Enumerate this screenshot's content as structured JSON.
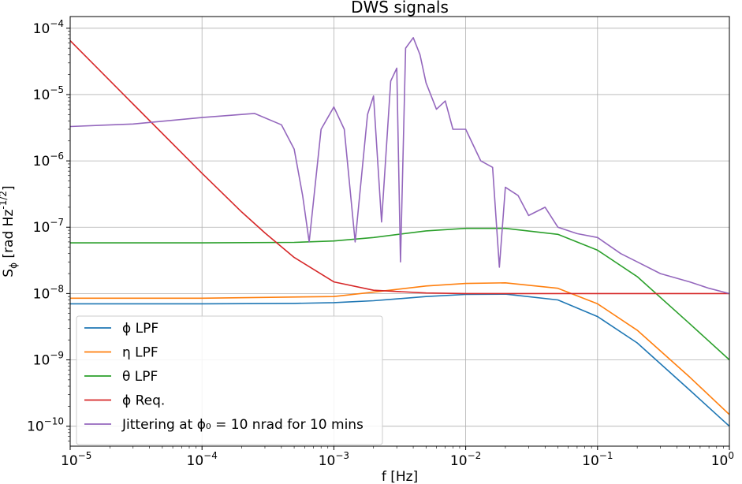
{
  "chart_data": {
    "type": "line",
    "title": "DWS signals",
    "xlabel": "f [Hz]",
    "ylabel": "S_ϕ [rad Hz^{-1/2}]",
    "x_scale": "log",
    "y_scale": "log",
    "xlim": [
      1e-05,
      1
    ],
    "ylim": [
      5e-11,
      0.00015
    ],
    "grid": true,
    "legend_position": "lower-left",
    "x_ticks": [
      {
        "base": "10",
        "exp": "−5",
        "value": 1e-05
      },
      {
        "base": "10",
        "exp": "−4",
        "value": 0.0001
      },
      {
        "base": "10",
        "exp": "−3",
        "value": 0.001
      },
      {
        "base": "10",
        "exp": "−2",
        "value": 0.01
      },
      {
        "base": "10",
        "exp": "−1",
        "value": 0.1
      },
      {
        "base": "10",
        "exp": "0",
        "value": 1
      }
    ],
    "y_ticks": [
      {
        "base": "10",
        "exp": "−10",
        "value": 1e-10
      },
      {
        "base": "10",
        "exp": "−9",
        "value": 1e-09
      },
      {
        "base": "10",
        "exp": "−8",
        "value": 1e-08
      },
      {
        "base": "10",
        "exp": "−7",
        "value": 1e-07
      },
      {
        "base": "10",
        "exp": "−6",
        "value": 1e-06
      },
      {
        "base": "10",
        "exp": "−5",
        "value": 1e-05
      },
      {
        "base": "10",
        "exp": "−4",
        "value": 0.0001
      }
    ],
    "series": [
      {
        "name": "ϕ LPF",
        "color": "#1f77b4",
        "x": [
          1e-05,
          0.0001,
          0.0005,
          0.001,
          0.002,
          0.005,
          0.01,
          0.02,
          0.05,
          0.1,
          0.2,
          0.5,
          1
        ],
        "y": [
          7e-09,
          7e-09,
          7.1e-09,
          7.3e-09,
          7.8e-09,
          9e-09,
          9.7e-09,
          9.8e-09,
          8e-09,
          4.5e-09,
          1.8e-09,
          3.5e-10,
          1e-10
        ]
      },
      {
        "name": "η LPF",
        "color": "#ff7f0e",
        "x": [
          1e-05,
          0.0001,
          0.001,
          0.002,
          0.005,
          0.01,
          0.02,
          0.05,
          0.1,
          0.2,
          0.5,
          1
        ],
        "y": [
          8.5e-09,
          8.5e-09,
          9e-09,
          1.05e-08,
          1.3e-08,
          1.42e-08,
          1.45e-08,
          1.2e-08,
          7e-09,
          2.8e-09,
          5.5e-10,
          1.5e-10
        ]
      },
      {
        "name": "θ LPF",
        "color": "#2ca02c",
        "x": [
          1e-05,
          0.0001,
          0.0005,
          0.001,
          0.002,
          0.005,
          0.01,
          0.02,
          0.05,
          0.1,
          0.2,
          0.5,
          1
        ],
        "y": [
          5.8e-08,
          5.8e-08,
          5.9e-08,
          6.2e-08,
          7e-08,
          8.8e-08,
          9.6e-08,
          9.6e-08,
          7.8e-08,
          4.5e-08,
          1.8e-08,
          3.5e-09,
          1e-09
        ]
      },
      {
        "name": "ϕ Req.",
        "color": "#d62728",
        "x": [
          1e-05,
          3e-05,
          0.0001,
          0.0002,
          0.0003,
          0.0005,
          0.001,
          0.002,
          0.005,
          0.01,
          0.1,
          1
        ],
        "y": [
          6.5e-05,
          7.2e-06,
          6.5e-07,
          1.7e-07,
          8.2e-08,
          3.5e-08,
          1.5e-08,
          1.12e-08,
          1.02e-08,
          1e-08,
          1e-08,
          1e-08
        ]
      },
      {
        "name": "Jittering at ϕ₀ = 10 nrad for 10 mins",
        "color": "#9467bd",
        "x": [
          1e-05,
          3e-05,
          0.0001,
          0.00025,
          0.0004,
          0.0005,
          0.00058,
          0.00065,
          0.0008,
          0.001,
          0.0012,
          0.00145,
          0.0018,
          0.002,
          0.0023,
          0.0027,
          0.003,
          0.0032,
          0.0035,
          0.004,
          0.0045,
          0.005,
          0.006,
          0.007,
          0.008,
          0.01,
          0.013,
          0.016,
          0.018,
          0.02,
          0.025,
          0.03,
          0.04,
          0.05,
          0.07,
          0.1,
          0.15,
          0.2,
          0.3,
          0.5,
          0.7,
          1
        ],
        "y": [
          3.3e-06,
          3.6e-06,
          4.5e-06,
          5.2e-06,
          3.5e-06,
          1.5e-06,
          3e-07,
          6e-08,
          3e-06,
          6.5e-06,
          3e-06,
          6e-08,
          5e-06,
          9.5e-06,
          1.2e-07,
          1.6e-05,
          2.5e-05,
          3e-08,
          5e-05,
          7.2e-05,
          4e-05,
          1.5e-05,
          6e-06,
          8e-06,
          3e-06,
          3e-06,
          1e-06,
          8e-07,
          2.5e-08,
          4e-07,
          3e-07,
          1.5e-07,
          2e-07,
          1e-07,
          8e-08,
          7e-08,
          4e-08,
          3e-08,
          2e-08,
          1.5e-08,
          1.2e-08,
          1e-08
        ]
      }
    ]
  }
}
